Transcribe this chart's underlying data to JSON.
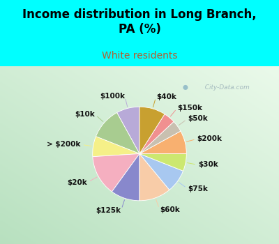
{
  "title": "Income distribution in Long Branch,\nPA (%)",
  "subtitle": "White residents",
  "bg_color": "#00FFFF",
  "chart_bg": "#d4edd8",
  "watermark": "  City-Data.com",
  "labels": [
    "$100k",
    "$10k",
    "> $200k",
    "$20k",
    "$125k",
    "$60k",
    "$75k",
    "$30k",
    "$200k",
    "$50k",
    "$150k",
    "$40k"
  ],
  "values": [
    8,
    11,
    7,
    14,
    10,
    11,
    8,
    6,
    8,
    4,
    4,
    9
  ],
  "colors": [
    "#b8aad8",
    "#a8cc90",
    "#f5f088",
    "#f5afc0",
    "#8888cc",
    "#f8cca8",
    "#a8c8f0",
    "#cce870",
    "#f8b070",
    "#c8c0b0",
    "#f09090",
    "#c8a030"
  ],
  "startangle": 90,
  "label_fontsize": 7.5,
  "title_fontsize": 12,
  "subtitle_fontsize": 10,
  "subtitle_color": "#b06030"
}
